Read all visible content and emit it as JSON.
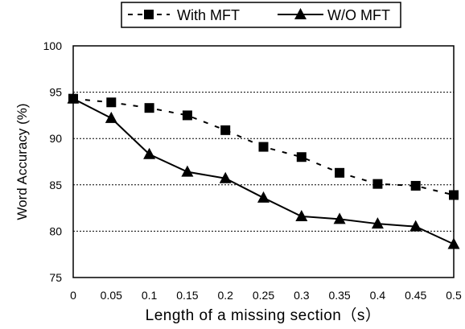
{
  "chart_data": {
    "type": "line",
    "x": [
      0,
      0.05,
      0.1,
      0.15,
      0.2,
      0.25,
      0.3,
      0.35,
      0.4,
      0.45,
      0.5
    ],
    "x_tick_labels": [
      "0",
      "0.05",
      "0.1",
      "0.15",
      "0.2",
      "0.25",
      "0.3",
      "0.35",
      "0.4",
      "0.45",
      "0.5"
    ],
    "y_tick_labels": [
      "75",
      "80",
      "85",
      "90",
      "95",
      "100"
    ],
    "series": [
      {
        "name": "With MFT",
        "marker": "square",
        "line_style": "dashed",
        "color": "#000000",
        "values": [
          94.3,
          93.9,
          93.3,
          92.5,
          90.9,
          89.1,
          88.0,
          86.3,
          85.1,
          84.9,
          83.9
        ]
      },
      {
        "name": "W/O MFT",
        "marker": "triangle",
        "line_style": "solid",
        "color": "#000000",
        "values": [
          94.3,
          92.2,
          88.3,
          86.4,
          85.7,
          83.6,
          81.6,
          81.3,
          80.8,
          80.5,
          78.6
        ]
      }
    ],
    "xlabel": "Length of a missing section（s）",
    "ylabel": "Word Accuracy (%)",
    "xlim": [
      0,
      0.5
    ],
    "ylim": [
      75,
      100
    ],
    "grid": "horizontal dotted",
    "legend_position": "top"
  }
}
